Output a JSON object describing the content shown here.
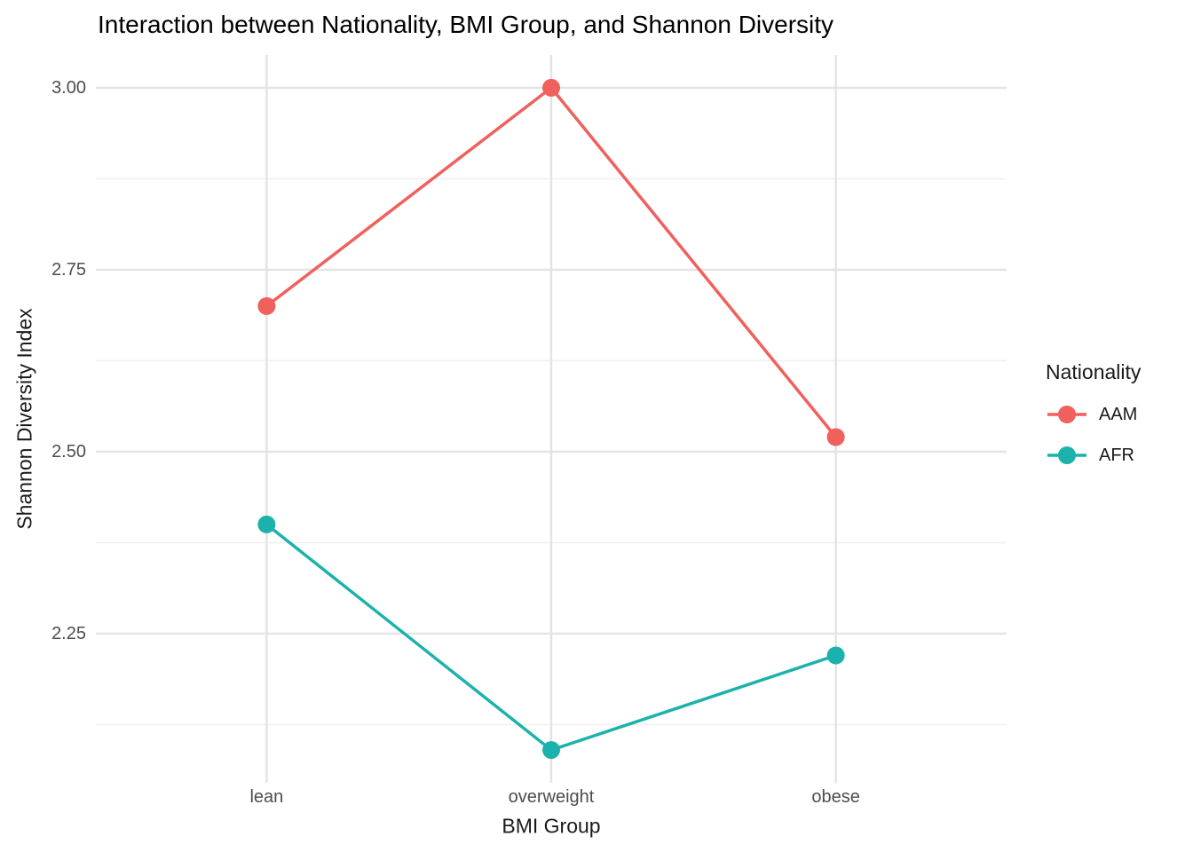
{
  "title": "Interaction between Nationality, BMI Group, and Shannon Diversity",
  "chart_data": {
    "type": "line",
    "categories": [
      "lean",
      "overweight",
      "obese"
    ],
    "series": [
      {
        "name": "AAM",
        "color": "#F0605C",
        "values": [
          2.7,
          3.0,
          2.52
        ]
      },
      {
        "name": "AFR",
        "color": "#1CB2AC",
        "values": [
          2.4,
          2.09,
          2.22
        ]
      }
    ],
    "title": "Interaction between Nationality, BMI Group, and Shannon Diversity",
    "xlabel": "BMI Group",
    "ylabel": "Shannon Diversity Index",
    "yticks": [
      2.25,
      2.5,
      2.75,
      3.0
    ],
    "y_minor_ticks": [
      2.125,
      2.375,
      2.625,
      2.875
    ],
    "ylim": [
      2.045,
      3.045
    ],
    "grid": true,
    "legend": {
      "title": "Nationality",
      "position": "right"
    }
  },
  "colors": {
    "background": "#FFFFFF",
    "major_grid": "#E3E3E3",
    "minor_grid": "#F0F0F0",
    "tick_label": "#4D4D4D",
    "text": "#1A1A1A"
  }
}
